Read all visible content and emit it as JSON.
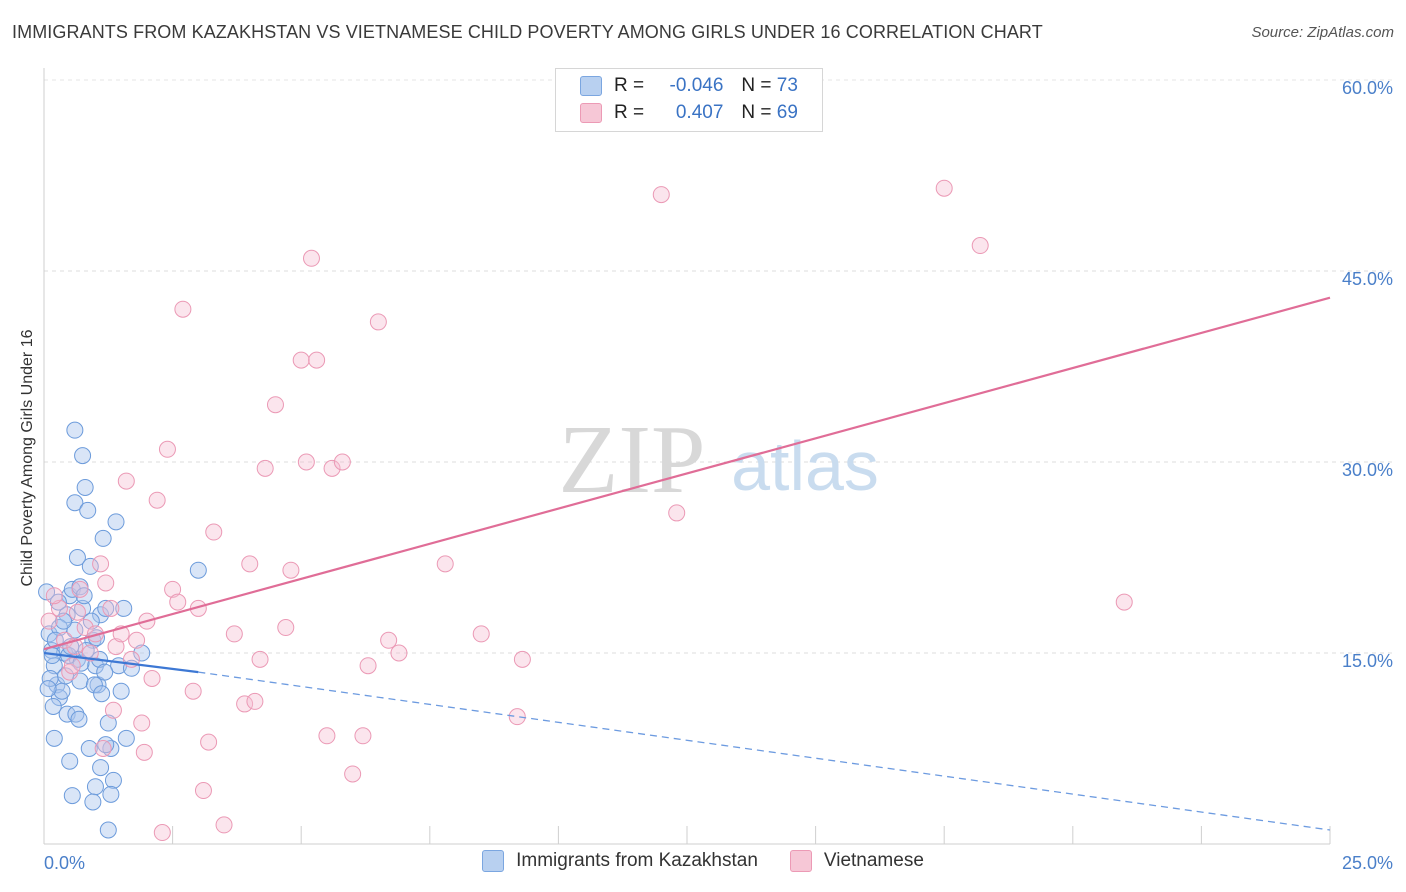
{
  "title": "IMMIGRANTS FROM KAZAKHSTAN VS VIETNAMESE CHILD POVERTY AMONG GIRLS UNDER 16 CORRELATION CHART",
  "source": "Source: ZipAtlas.com",
  "watermark": {
    "zip": "ZIP",
    "atlas": "atlas"
  },
  "legend": {
    "r_label": "R =",
    "n_label": "N =",
    "series": [
      {
        "name": "Immigrants from Kazakhstan",
        "r": "-0.046",
        "n": "73",
        "fill": "#b8d0f0",
        "stroke": "#7ba6e0"
      },
      {
        "name": "Vietnamese",
        "r": "0.407",
        "n": "69",
        "fill": "#f6c7d6",
        "stroke": "#ec9ab5"
      }
    ]
  },
  "chart_data": {
    "type": "scatter",
    "ylabel": "Child Poverty Among Girls Under 16",
    "xlabel": "",
    "xlim": [
      0,
      25
    ],
    "ylim": [
      0,
      60
    ],
    "x_tick_labels": [
      "0.0%",
      "25.0%"
    ],
    "y_ticks": [
      15,
      30,
      45,
      60
    ],
    "y_tick_labels": [
      "15.0%",
      "30.0%",
      "45.0%",
      "60.0%"
    ],
    "series": [
      {
        "name": "Immigrants from Kazakhstan",
        "color": "#5b8ed6",
        "trend": {
          "x0": 0,
          "y0": 15.0,
          "x1": 3.0,
          "y1": 13.5,
          "dash_to_x": 25,
          "dash_to_y": 1.1
        },
        "points": [
          [
            0.05,
            19.8
          ],
          [
            0.1,
            16.5
          ],
          [
            0.15,
            15.2
          ],
          [
            0.2,
            14.0
          ],
          [
            0.25,
            12.5
          ],
          [
            0.3,
            11.5
          ],
          [
            0.12,
            13.0
          ],
          [
            0.18,
            10.8
          ],
          [
            0.35,
            12.0
          ],
          [
            0.4,
            15.0
          ],
          [
            0.45,
            18.0
          ],
          [
            0.5,
            19.5
          ],
          [
            0.55,
            20.0
          ],
          [
            0.6,
            16.8
          ],
          [
            0.65,
            14.5
          ],
          [
            0.7,
            12.8
          ],
          [
            0.2,
            8.3
          ],
          [
            0.45,
            10.2
          ],
          [
            0.5,
            6.5
          ],
          [
            0.55,
            3.8
          ],
          [
            0.6,
            26.8
          ],
          [
            0.65,
            22.5
          ],
          [
            0.7,
            20.2
          ],
          [
            0.75,
            18.5
          ],
          [
            0.8,
            28.0
          ],
          [
            0.75,
            30.5
          ],
          [
            0.6,
            32.5
          ],
          [
            0.85,
            26.2
          ],
          [
            0.9,
            21.8
          ],
          [
            0.95,
            16.0
          ],
          [
            1.0,
            14.0
          ],
          [
            1.05,
            12.5
          ],
          [
            1.1,
            18.0
          ],
          [
            1.15,
            24.0
          ],
          [
            1.2,
            18.5
          ],
          [
            1.25,
            9.5
          ],
          [
            1.3,
            7.5
          ],
          [
            1.35,
            5.0
          ],
          [
            1.4,
            25.3
          ],
          [
            1.45,
            14.0
          ],
          [
            1.5,
            12.0
          ],
          [
            1.55,
            18.5
          ],
          [
            1.6,
            8.3
          ],
          [
            1.7,
            13.8
          ],
          [
            1.1,
            6.0
          ],
          [
            1.2,
            7.8
          ],
          [
            1.0,
            4.5
          ],
          [
            0.95,
            3.3
          ],
          [
            1.3,
            3.9
          ],
          [
            1.25,
            1.1
          ],
          [
            0.3,
            17.0
          ],
          [
            0.38,
            17.5
          ],
          [
            0.42,
            13.2
          ],
          [
            0.48,
            14.8
          ],
          [
            0.52,
            15.5
          ],
          [
            0.62,
            10.2
          ],
          [
            0.68,
            9.8
          ],
          [
            0.72,
            14.2
          ],
          [
            0.78,
            19.5
          ],
          [
            0.82,
            15.2
          ],
          [
            0.88,
            7.5
          ],
          [
            0.92,
            17.5
          ],
          [
            0.98,
            12.5
          ],
          [
            1.02,
            16.2
          ],
          [
            1.08,
            14.5
          ],
          [
            1.12,
            11.8
          ],
          [
            1.18,
            13.5
          ],
          [
            0.28,
            19.0
          ],
          [
            0.22,
            16.0
          ],
          [
            0.16,
            14.8
          ],
          [
            0.08,
            12.2
          ],
          [
            3.0,
            21.5
          ],
          [
            1.9,
            15.0
          ]
        ]
      },
      {
        "name": "Vietnamese",
        "color": "#e07099",
        "trend": {
          "x0": 0,
          "y0": 15.3,
          "x1": 25,
          "y1": 42.9
        },
        "points": [
          [
            0.1,
            17.5
          ],
          [
            0.3,
            18.5
          ],
          [
            0.4,
            16.0
          ],
          [
            0.5,
            13.5
          ],
          [
            0.6,
            15.5
          ],
          [
            0.7,
            20.0
          ],
          [
            0.8,
            17.0
          ],
          [
            0.9,
            15.0
          ],
          [
            1.0,
            16.5
          ],
          [
            1.1,
            22.0
          ],
          [
            1.2,
            20.5
          ],
          [
            1.3,
            18.5
          ],
          [
            1.4,
            15.5
          ],
          [
            1.5,
            16.5
          ],
          [
            1.6,
            28.5
          ],
          [
            1.7,
            14.5
          ],
          [
            1.8,
            16.0
          ],
          [
            1.9,
            9.5
          ],
          [
            2.0,
            17.5
          ],
          [
            2.1,
            13.0
          ],
          [
            2.2,
            27.0
          ],
          [
            2.4,
            31.0
          ],
          [
            2.5,
            20.0
          ],
          [
            2.6,
            19.0
          ],
          [
            2.7,
            42.0
          ],
          [
            2.9,
            12.0
          ],
          [
            3.0,
            18.5
          ],
          [
            3.2,
            8.0
          ],
          [
            3.3,
            24.5
          ],
          [
            3.5,
            1.5
          ],
          [
            3.7,
            16.5
          ],
          [
            3.9,
            11.0
          ],
          [
            4.0,
            22.0
          ],
          [
            4.2,
            14.5
          ],
          [
            4.3,
            29.5
          ],
          [
            4.5,
            34.5
          ],
          [
            4.7,
            17.0
          ],
          [
            4.8,
            21.5
          ],
          [
            5.0,
            38.0
          ],
          [
            5.1,
            30.0
          ],
          [
            5.2,
            46.0
          ],
          [
            5.3,
            38.0
          ],
          [
            5.5,
            8.5
          ],
          [
            5.6,
            29.5
          ],
          [
            5.8,
            30.0
          ],
          [
            6.0,
            5.5
          ],
          [
            6.2,
            8.5
          ],
          [
            6.3,
            14.0
          ],
          [
            6.5,
            41.0
          ],
          [
            6.7,
            16.0
          ],
          [
            6.9,
            15.0
          ],
          [
            7.8,
            22.0
          ],
          [
            8.5,
            16.5
          ],
          [
            9.2,
            10.0
          ],
          [
            9.3,
            14.5
          ],
          [
            12.0,
            51.0
          ],
          [
            12.3,
            26.0
          ],
          [
            17.5,
            51.5
          ],
          [
            18.2,
            47.0
          ],
          [
            21.0,
            19.0
          ],
          [
            0.2,
            19.5
          ],
          [
            0.55,
            14.0
          ],
          [
            1.15,
            7.5
          ],
          [
            1.35,
            10.5
          ],
          [
            1.95,
            7.2
          ],
          [
            2.3,
            0.9
          ],
          [
            3.1,
            4.2
          ],
          [
            4.1,
            11.2
          ],
          [
            0.65,
            18.2
          ]
        ]
      }
    ]
  }
}
